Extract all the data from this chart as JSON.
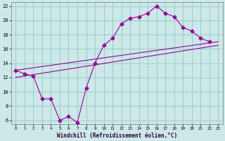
{
  "bg_color": "#cce8e8",
  "line_color": "#990099",
  "grid_color": "#99cccc",
  "xlabel": "Windchill (Refroidissement éolien,°C)",
  "xlim": [
    -0.5,
    23.5
  ],
  "ylim": [
    5.5,
    22.5
  ],
  "xticks": [
    0,
    1,
    2,
    3,
    4,
    5,
    6,
    7,
    8,
    9,
    10,
    11,
    12,
    13,
    14,
    15,
    16,
    17,
    18,
    19,
    20,
    21,
    22,
    23
  ],
  "yticks": [
    6,
    8,
    10,
    12,
    14,
    16,
    18,
    20,
    22
  ],
  "line1_x": [
    0,
    1,
    2,
    3,
    4,
    5,
    6,
    7,
    8,
    9,
    10,
    11,
    12,
    13,
    14,
    15,
    16,
    17,
    18,
    19,
    20,
    21,
    22
  ],
  "line1_y": [
    13,
    12.5,
    12.2,
    9,
    9,
    6,
    6.5,
    5.7,
    10.5,
    14,
    16.5,
    17.5,
    19.5,
    20.3,
    20.5,
    21,
    22,
    21,
    20.5,
    19,
    18.5,
    17.5,
    17
  ],
  "line2_x": [
    0,
    23
  ],
  "line2_y": [
    13,
    17
  ],
  "line3_x": [
    0,
    23
  ],
  "line3_y": [
    12,
    16.5
  ],
  "marker": "D",
  "markersize": 2.5,
  "linewidth": 0.8
}
